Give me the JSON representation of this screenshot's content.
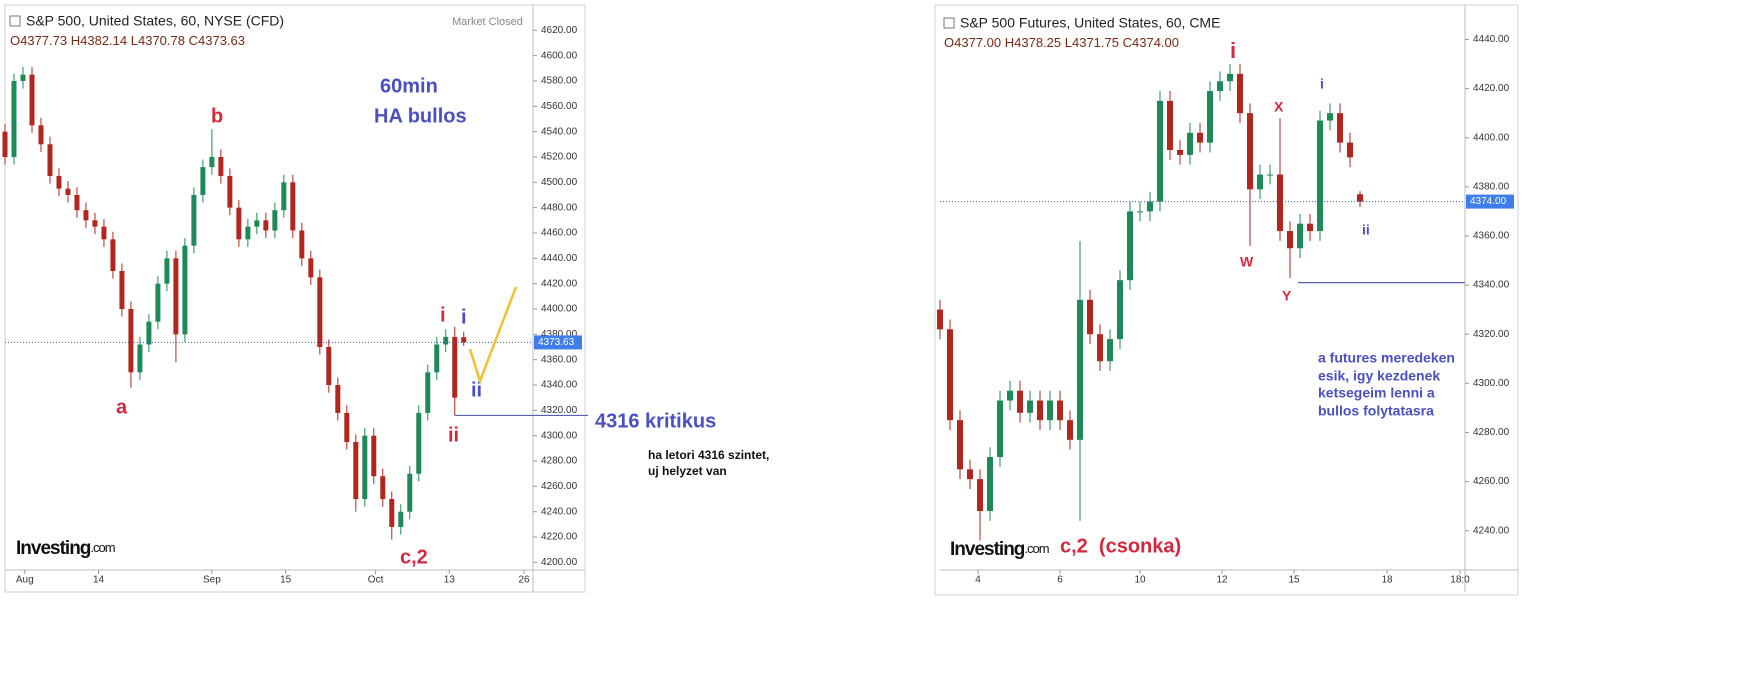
{
  "chart_data": [
    {
      "type": "candlestick",
      "title": "S&P 500, United States, 60, NYSE (CFD)",
      "status": "Market Closed",
      "ohlc_header": [
        "O4377.73",
        "H4382.14",
        "L4370.78",
        "C4373.63"
      ],
      "brand": [
        "Investing",
        ".com"
      ],
      "up_color": "#1e8a5a",
      "down_color": "#b3261e",
      "ylim": [
        4194,
        4636
      ],
      "yticks": [
        {
          "value": 4200,
          "label": "4200.00"
        },
        {
          "value": 4220,
          "label": "4220.00"
        },
        {
          "value": 4240,
          "label": "4240.00"
        },
        {
          "value": 4260,
          "label": "4260.00"
        },
        {
          "value": 4280,
          "label": "4280.00"
        },
        {
          "value": 4300,
          "label": "4300.00"
        },
        {
          "value": 4320,
          "label": "4320.00"
        },
        {
          "value": 4340,
          "label": "4340.00"
        },
        {
          "value": 4360,
          "label": "4360.00"
        },
        {
          "value": 4380,
          "label": "4380.00"
        },
        {
          "value": 4400,
          "label": "4400.00"
        },
        {
          "value": 4420,
          "label": "4420.00"
        },
        {
          "value": 4440,
          "label": "4440.00"
        },
        {
          "value": 4460,
          "label": "4460.00"
        },
        {
          "value": 4480,
          "label": "4480.00"
        },
        {
          "value": 4500,
          "label": "4500.00"
        },
        {
          "value": 4520,
          "label": "4520.00"
        },
        {
          "value": 4540,
          "label": "4540.00"
        },
        {
          "value": 4560,
          "label": "4560.00"
        },
        {
          "value": 4580,
          "label": "4580.00"
        },
        {
          "value": 4600,
          "label": "4600.00"
        },
        {
          "value": 4620,
          "label": "4620.00"
        }
      ],
      "xlim": [
        0,
        58.7
      ],
      "xticks": [
        {
          "value": 2.2,
          "label": "Aug"
        },
        {
          "value": 10.4,
          "label": "14"
        },
        {
          "value": 23,
          "label": "Sep"
        },
        {
          "value": 31.2,
          "label": "15"
        },
        {
          "value": 41.2,
          "label": "Oct"
        },
        {
          "value": 49.4,
          "label": "13"
        },
        {
          "value": 57.7,
          "label": "26"
        }
      ],
      "open": [
        4540,
        4520,
        4580,
        4585,
        4545,
        4530,
        4505,
        4495,
        4490,
        4478,
        4470,
        4465,
        4455,
        4430,
        4400,
        4350,
        4372,
        4390,
        4420,
        4440,
        4380,
        4450,
        4490,
        4512,
        4520,
        4505,
        4480,
        4455,
        4465,
        4470,
        4462,
        4478,
        4500,
        4462,
        4440,
        4425,
        4370,
        4340,
        4318,
        4295,
        4250,
        4300,
        4268,
        4250,
        4228,
        4240,
        4270,
        4318,
        4350,
        4372,
        4378,
        4377.73
      ],
      "high": [
        4546,
        4586,
        4591,
        4591,
        4551,
        4536,
        4511,
        4501,
        4496,
        4484,
        4476,
        4471,
        4461,
        4436,
        4406,
        4378,
        4396,
        4426,
        4446,
        4446,
        4456,
        4496,
        4518,
        4542,
        4526,
        4511,
        4486,
        4471,
        4476,
        4476,
        4484,
        4506,
        4506,
        4468,
        4446,
        4431,
        4376,
        4346,
        4324,
        4301,
        4306,
        4306,
        4274,
        4256,
        4246,
        4276,
        4324,
        4356,
        4378,
        4384,
        4386,
        4382.14
      ],
      "low": [
        4514,
        4514,
        4574,
        4539,
        4524,
        4499,
        4489,
        4484,
        4472,
        4464,
        4459,
        4449,
        4424,
        4394,
        4338,
        4344,
        4366,
        4384,
        4414,
        4358,
        4374,
        4444,
        4484,
        4506,
        4499,
        4474,
        4449,
        4449,
        4459,
        4456,
        4456,
        4472,
        4456,
        4434,
        4419,
        4364,
        4334,
        4312,
        4289,
        4240,
        4244,
        4262,
        4244,
        4218,
        4222,
        4234,
        4264,
        4312,
        4344,
        4366,
        4316,
        4370.78
      ],
      "close": [
        4520,
        4580,
        4585,
        4545,
        4530,
        4505,
        4495,
        4490,
        4478,
        4470,
        4465,
        4455,
        4430,
        4400,
        4350,
        4372,
        4390,
        4420,
        4440,
        4380,
        4450,
        4490,
        4512,
        4520,
        4505,
        4480,
        4455,
        4465,
        4470,
        4462,
        4478,
        4500,
        4462,
        4440,
        4425,
        4370,
        4340,
        4318,
        4295,
        4250,
        4300,
        4268,
        4250,
        4228,
        4240,
        4270,
        4318,
        4350,
        4372,
        4378,
        4330,
        4373.63
      ],
      "last_price_label": "4373.63",
      "level": 4316,
      "annotations": [
        "60min",
        "HA bullos",
        "b",
        "a",
        "i",
        "i",
        "ii",
        "ii",
        "c,2",
        "4316 kritikus",
        "ha letori 4316 szintet,",
        "uj helyzet van"
      ]
    },
    {
      "type": "candlestick",
      "title": "S&P 500 Futures, United States, 60, CME",
      "ohlc_header": [
        "O4377.00",
        "H4378.25",
        "L4371.75",
        "C4374.00"
      ],
      "brand": [
        "Investing",
        ".com"
      ],
      "up_color": "#1e8a5a",
      "down_color": "#b3261e",
      "ylim": [
        4224,
        4452
      ],
      "yticks": [
        {
          "value": 4240,
          "label": "4240.00"
        },
        {
          "value": 4260,
          "label": "4260.00"
        },
        {
          "value": 4280,
          "label": "4280.00"
        },
        {
          "value": 4300,
          "label": "4300.00"
        },
        {
          "value": 4320,
          "label": "4320.00"
        },
        {
          "value": 4340,
          "label": "4340.00"
        },
        {
          "value": 4360,
          "label": "4360.00"
        },
        {
          "value": 4380,
          "label": "4380.00"
        },
        {
          "value": 4400,
          "label": "4400.00"
        },
        {
          "value": 4420,
          "label": "4420.00"
        },
        {
          "value": 4440,
          "label": "4440.00"
        }
      ],
      "xlim": [
        0,
        52.5
      ],
      "xticks": [
        {
          "value": 3.8,
          "label": "4"
        },
        {
          "value": 12,
          "label": "6"
        },
        {
          "value": 20,
          "label": "10"
        },
        {
          "value": 28.2,
          "label": "12"
        },
        {
          "value": 35.4,
          "label": "15"
        },
        {
          "value": 44.7,
          "label": "18"
        },
        {
          "value": 52,
          "label": "18:0"
        }
      ],
      "open": [
        4330,
        4322,
        4285,
        4265,
        4261,
        4248,
        4270,
        4293,
        4297,
        4288,
        4293,
        4285,
        4293,
        4285,
        4277,
        4334,
        4320,
        4309,
        4318,
        4342,
        4370,
        4370,
        4374,
        4415,
        4395,
        4393,
        4402,
        4398,
        4419,
        4423,
        4426,
        4410,
        4379,
        4385,
        4385,
        4362,
        4355,
        4365,
        4362,
        4407,
        4410,
        4398,
        4377.0
      ],
      "high": [
        4334,
        4326,
        4289,
        4269,
        4265,
        4274,
        4297,
        4301,
        4301,
        4297,
        4297,
        4297,
        4297,
        4289,
        4358,
        4338,
        4324,
        4322,
        4346,
        4374,
        4374,
        4378,
        4419,
        4419,
        4399,
        4406,
        4406,
        4423,
        4427,
        4430,
        4430,
        4414,
        4389,
        4389,
        4408,
        4366,
        4369,
        4369,
        4411,
        4414,
        4414,
        4402,
        4378.25
      ],
      "low": [
        4318,
        4281,
        4261,
        4257,
        4236,
        4244,
        4266,
        4289,
        4284,
        4284,
        4281,
        4281,
        4281,
        4273,
        4244,
        4316,
        4305,
        4305,
        4314,
        4338,
        4366,
        4366,
        4370,
        4391,
        4389,
        4389,
        4394,
        4394,
        4415,
        4419,
        4406,
        4356,
        4375,
        4381,
        4358,
        4343,
        4351,
        4358,
        4358,
        4403,
        4394,
        4388,
        4371.75
      ],
      "close": [
        4322,
        4285,
        4265,
        4261,
        4248,
        4270,
        4293,
        4297,
        4288,
        4293,
        4285,
        4293,
        4285,
        4277,
        4334,
        4320,
        4309,
        4318,
        4342,
        4370,
        4370,
        4374,
        4415,
        4395,
        4393,
        4402,
        4398,
        4419,
        4423,
        4426,
        4410,
        4379,
        4385,
        4385,
        4362,
        4355,
        4365,
        4362,
        4407,
        4410,
        4398,
        4392,
        4374.0
      ],
      "last_price_label": "4374.00",
      "level": 4341,
      "annotations": [
        "i",
        "X",
        "i",
        "W",
        "Y",
        "ii",
        "c,2  (csonka)",
        "a futures meredeken",
        "esik, igy kezdenek",
        "ketsegeim lenni a",
        "bullos folytatasra"
      ]
    }
  ]
}
